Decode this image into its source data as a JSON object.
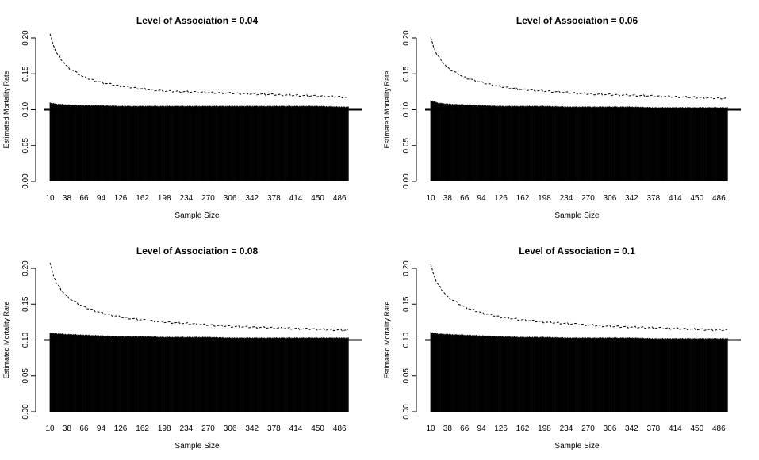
{
  "chart_data": [
    {
      "type": "bar",
      "title": "Level of Association = 0.04",
      "xlabel": "Sample Size",
      "ylabel": "Estimated Mortality Rate",
      "xlim": [
        10,
        500
      ],
      "ylim": [
        0,
        0.2
      ],
      "x_tick_labels": [
        "10",
        "38",
        "66",
        "94",
        "126",
        "162",
        "198",
        "234",
        "270",
        "306",
        "342",
        "378",
        "414",
        "450",
        "486"
      ],
      "y_tick_labels": [
        "0.00",
        "0.05",
        "0.10",
        "0.15",
        "0.20"
      ],
      "reference_line": 0.1,
      "series": [
        {
          "style": "bars",
          "values": {
            "x": [
              10,
              20,
              38,
              66,
              94,
              126,
              162,
              198,
              234,
              270,
              306,
              342,
              378,
              414,
              450,
              486,
              500
            ],
            "y": [
              0.11,
              0.108,
              0.107,
              0.106,
              0.106,
              0.105,
              0.105,
              0.105,
              0.105,
              0.105,
              0.105,
              0.105,
              0.105,
              0.105,
              0.105,
              0.104,
              0.104
            ]
          }
        },
        {
          "style": "dashed",
          "values": {
            "x": [
              10,
              20,
              38,
              66,
              94,
              126,
              162,
              198,
              234,
              270,
              306,
              342,
              378,
              414,
              450,
              486,
              500
            ],
            "y": [
              0.205,
              0.18,
              0.16,
              0.145,
              0.138,
              0.133,
              0.129,
              0.126,
              0.125,
              0.124,
              0.123,
              0.122,
              0.121,
              0.12,
              0.119,
              0.118,
              0.117
            ]
          }
        }
      ]
    },
    {
      "type": "bar",
      "title": "Level of Association = 0.06",
      "xlabel": "Sample Size",
      "ylabel": "Estimated Mortality Rate",
      "xlim": [
        10,
        500
      ],
      "ylim": [
        0,
        0.2
      ],
      "x_tick_labels": [
        "10",
        "38",
        "66",
        "94",
        "126",
        "162",
        "198",
        "234",
        "270",
        "306",
        "342",
        "378",
        "414",
        "450",
        "486"
      ],
      "y_tick_labels": [
        "0.00",
        "0.05",
        "0.10",
        "0.15",
        "0.20"
      ],
      "reference_line": 0.1,
      "series": [
        {
          "style": "bars",
          "values": {
            "x": [
              10,
              20,
              38,
              66,
              94,
              126,
              162,
              198,
              234,
              270,
              306,
              342,
              378,
              414,
              450,
              486,
              500
            ],
            "y": [
              0.113,
              0.11,
              0.108,
              0.107,
              0.106,
              0.105,
              0.105,
              0.105,
              0.104,
              0.104,
              0.104,
              0.104,
              0.103,
              0.103,
              0.103,
              0.103,
              0.103
            ]
          }
        },
        {
          "style": "dashed",
          "values": {
            "x": [
              10,
              20,
              38,
              66,
              94,
              126,
              162,
              198,
              234,
              270,
              306,
              342,
              378,
              414,
              450,
              486,
              500
            ],
            "y": [
              0.2,
              0.177,
              0.158,
              0.145,
              0.138,
              0.132,
              0.128,
              0.126,
              0.124,
              0.122,
              0.121,
              0.12,
              0.119,
              0.118,
              0.117,
              0.116,
              0.116
            ]
          }
        }
      ]
    },
    {
      "type": "bar",
      "title": "Level of Association = 0.08",
      "xlabel": "Sample Size",
      "ylabel": "Estimated Mortality Rate",
      "xlim": [
        10,
        500
      ],
      "ylim": [
        0,
        0.2
      ],
      "x_tick_labels": [
        "10",
        "38",
        "66",
        "94",
        "126",
        "162",
        "198",
        "234",
        "270",
        "306",
        "342",
        "378",
        "414",
        "450",
        "486"
      ],
      "y_tick_labels": [
        "0.00",
        "0.05",
        "0.10",
        "0.15",
        "0.20"
      ],
      "reference_line": 0.1,
      "series": [
        {
          "style": "bars",
          "values": {
            "x": [
              10,
              20,
              38,
              66,
              94,
              126,
              162,
              198,
              234,
              270,
              306,
              342,
              378,
              414,
              450,
              486,
              500
            ],
            "y": [
              0.11,
              0.109,
              0.108,
              0.107,
              0.106,
              0.105,
              0.105,
              0.104,
              0.104,
              0.104,
              0.103,
              0.103,
              0.103,
              0.103,
              0.103,
              0.103,
              0.103
            ]
          }
        },
        {
          "style": "dashed",
          "values": {
            "x": [
              10,
              20,
              38,
              66,
              94,
              126,
              162,
              198,
              234,
              270,
              306,
              342,
              378,
              414,
              450,
              486,
              500
            ],
            "y": [
              0.207,
              0.18,
              0.16,
              0.146,
              0.138,
              0.132,
              0.128,
              0.125,
              0.123,
              0.121,
              0.119,
              0.118,
              0.117,
              0.116,
              0.115,
              0.114,
              0.114
            ]
          }
        }
      ]
    },
    {
      "type": "bar",
      "title": "Level of Association = 0.1",
      "xlabel": "Sample Size",
      "ylabel": "Estimated Mortality Rate",
      "xlim": [
        10,
        500
      ],
      "ylim": [
        0,
        0.2
      ],
      "x_tick_labels": [
        "10",
        "38",
        "66",
        "94",
        "126",
        "162",
        "198",
        "234",
        "270",
        "306",
        "342",
        "378",
        "414",
        "450",
        "486"
      ],
      "y_tick_labels": [
        "0.00",
        "0.05",
        "0.10",
        "0.15",
        "0.20"
      ],
      "reference_line": 0.1,
      "series": [
        {
          "style": "bars",
          "values": {
            "x": [
              10,
              20,
              38,
              66,
              94,
              126,
              162,
              198,
              234,
              270,
              306,
              342,
              378,
              414,
              450,
              486,
              500
            ],
            "y": [
              0.111,
              0.109,
              0.108,
              0.107,
              0.106,
              0.105,
              0.104,
              0.104,
              0.103,
              0.103,
              0.103,
              0.103,
              0.102,
              0.102,
              0.102,
              0.102,
              0.102
            ]
          }
        },
        {
          "style": "dashed",
          "values": {
            "x": [
              10,
              20,
              38,
              66,
              94,
              126,
              162,
              198,
              234,
              270,
              306,
              342,
              378,
              414,
              450,
              486,
              500
            ],
            "y": [
              0.205,
              0.18,
              0.16,
              0.146,
              0.138,
              0.132,
              0.128,
              0.125,
              0.123,
              0.121,
              0.119,
              0.118,
              0.117,
              0.116,
              0.115,
              0.114,
              0.114
            ]
          }
        }
      ]
    }
  ]
}
